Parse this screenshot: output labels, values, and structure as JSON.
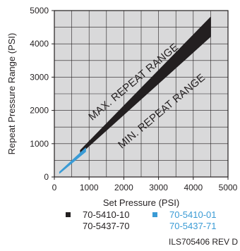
{
  "chart_data": {
    "type": "area",
    "xlabel": "Set Pressure (PSI)",
    "ylabel": "Repeat Pressure Range (PSI)",
    "xlim": [
      0,
      5000
    ],
    "ylim": [
      0,
      5000
    ],
    "x_ticks": [
      "0",
      "1000",
      "2000",
      "3000",
      "4000",
      "5000"
    ],
    "y_ticks": [
      "0",
      "1000",
      "2000",
      "3000",
      "4000",
      "5000"
    ],
    "grid": true,
    "background_color": "#d9d9da",
    "annotations": [
      {
        "text": "MAX. REPEAT RANGE"
      },
      {
        "text": "MIN. REPEAT RANGE"
      }
    ],
    "series": [
      {
        "name": "70-5410-10 70-5437-70",
        "color": "#231f20",
        "upper": [
          [
            750,
            800
          ],
          [
            4500,
            4800
          ]
        ],
        "lower": [
          [
            750,
            700
          ],
          [
            4500,
            4220
          ]
        ]
      },
      {
        "name": "70-5410-01 70-5437-71",
        "color": "#3a9bd5",
        "upper": [
          [
            150,
            150
          ],
          [
            900,
            870
          ]
        ],
        "lower": [
          [
            150,
            110
          ],
          [
            900,
            760
          ]
        ]
      }
    ]
  },
  "legend": [
    {
      "lines": [
        "70-5410-10",
        "70-5437-70"
      ],
      "color": "#231f20",
      "text_color": "#231f20"
    },
    {
      "lines": [
        "70-5410-01",
        "70-5437-71"
      ],
      "color": "#3a9bd5",
      "text_color": "#3a9bd5"
    }
  ],
  "footer": "ILS705406  REV D"
}
